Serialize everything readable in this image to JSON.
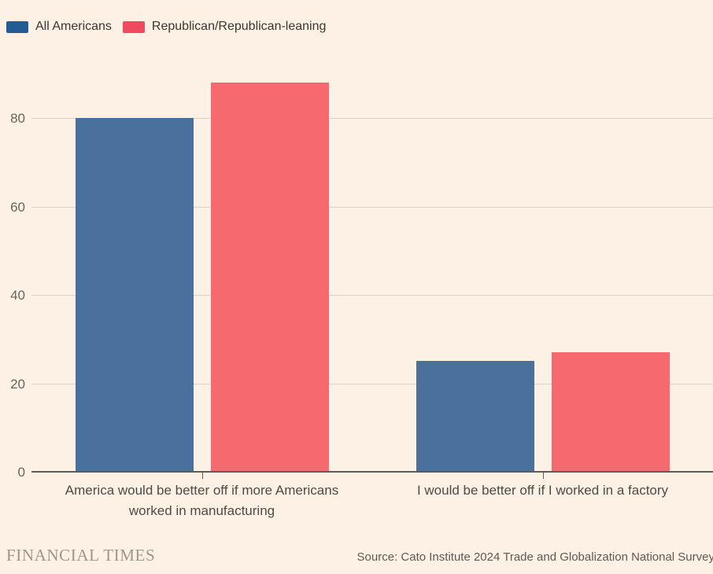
{
  "colors": {
    "background": "#fdf1e5",
    "grid": "#ddd1c7",
    "axis": "#5f5a54",
    "blue_bar": "#4a719d",
    "blue_legend": "#235c92",
    "red_bar": "#f5696f",
    "red_legend": "#ef4a5f"
  },
  "chart_data": {
    "type": "bar",
    "categories": [
      "America would be better off if more Americans worked in manufacturing",
      "I would be better off if I worked in a factory"
    ],
    "category_lines": [
      [
        "America would be better off if more Americans",
        "worked in manufacturing"
      ],
      [
        "I would be better off if I worked in a factory"
      ]
    ],
    "series": [
      {
        "name": "All Americans",
        "values": [
          80,
          25
        ],
        "color": "#4a719d",
        "legend_color": "#235c92"
      },
      {
        "name": "Republican/Republican-leaning",
        "values": [
          88,
          27
        ],
        "color": "#f5696f",
        "legend_color": "#ef4a5f"
      }
    ],
    "title": "",
    "xlabel": "",
    "ylabel": "",
    "yticks": [
      0,
      20,
      40,
      60,
      80
    ],
    "ylim": [
      0,
      90
    ],
    "grid": true,
    "legend_position": "top-left"
  },
  "footer": {
    "brand": "FINANCIAL TIMES",
    "source": "Source: Cato Institute 2024 Trade and Globalization National Survey"
  }
}
